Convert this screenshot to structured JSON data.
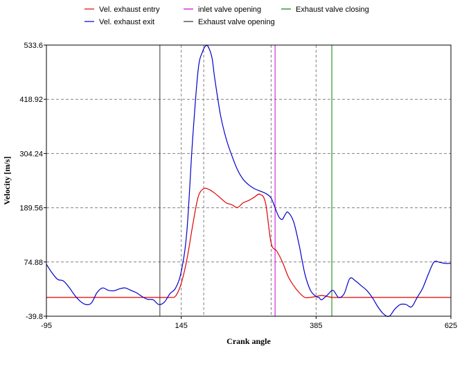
{
  "chart_data": {
    "type": "line",
    "xlabel": "Crank angle",
    "ylabel": "Velocity  [m/s]",
    "xlim": [
      -95,
      625
    ],
    "ylim": [
      -39.8,
      533.6
    ],
    "x_ticks": [
      -95,
      145,
      385,
      625
    ],
    "x_tick_labels": [
      "-95",
      "145",
      "385",
      "625"
    ],
    "x_grid": [
      185,
      305
    ],
    "y_ticks": [
      -39.8,
      74.88,
      189.56,
      304.24,
      418.92,
      533.6
    ],
    "y_tick_labels": [
      "-39.8",
      "74.88",
      "189.56",
      "304.24",
      "418.92",
      "533.6"
    ],
    "grid": true,
    "legend_position": "top",
    "series": [
      {
        "name": "Vel. exhaust entry",
        "color": "#e00000",
        "x": [
          -95,
          100,
          125,
          135,
          145,
          155,
          165,
          175,
          185,
          195,
          205,
          215,
          225,
          235,
          245,
          255,
          265,
          275,
          285,
          295,
          305,
          315,
          325,
          335,
          345,
          355,
          365,
          375,
          385,
          395,
          405,
          415,
          445,
          500,
          560,
          625
        ],
        "y": [
          0,
          0,
          0,
          3,
          30,
          80,
          150,
          212,
          230,
          228,
          220,
          210,
          200,
          196,
          190,
          200,
          205,
          212,
          218,
          200,
          115,
          98,
          75,
          45,
          25,
          10,
          0,
          0,
          2,
          4,
          2,
          0,
          0,
          0,
          0,
          0
        ]
      },
      {
        "name": "Vel. exhaust exit",
        "color": "#0000cc",
        "x": [
          -95,
          -85,
          -75,
          -65,
          -55,
          -45,
          -35,
          -25,
          -15,
          -5,
          5,
          15,
          25,
          35,
          45,
          55,
          65,
          75,
          85,
          95,
          105,
          115,
          125,
          135,
          145,
          155,
          165,
          175,
          183,
          190,
          195,
          200,
          205,
          215,
          225,
          235,
          245,
          255,
          265,
          275,
          285,
          295,
          305,
          315,
          320,
          325,
          330,
          335,
          345,
          355,
          365,
          375,
          385,
          390,
          395,
          405,
          415,
          425,
          435,
          445,
          455,
          465,
          475,
          485,
          495,
          505,
          515,
          525,
          535,
          545,
          555,
          565,
          575,
          585,
          595,
          605,
          615,
          625
        ],
        "y": [
          70,
          52,
          38,
          35,
          22,
          5,
          -8,
          -15,
          -12,
          10,
          20,
          15,
          14,
          18,
          20,
          15,
          10,
          2,
          -4,
          -5,
          -15,
          -10,
          8,
          20,
          55,
          140,
          330,
          480,
          520,
          533,
          525,
          505,
          460,
          385,
          335,
          300,
          270,
          250,
          238,
          230,
          225,
          220,
          210,
          180,
          168,
          165,
          175,
          180,
          160,
          110,
          50,
          15,
          2,
          0,
          -5,
          5,
          15,
          0,
          8,
          40,
          35,
          25,
          15,
          0,
          -20,
          -35,
          -40,
          -25,
          -15,
          -15,
          -20,
          0,
          20,
          50,
          75,
          74,
          72,
          72
        ]
      }
    ],
    "markers": [
      {
        "name": "inlet valve opening",
        "x": 312,
        "color": "#cc00cc"
      },
      {
        "name": "Exhaust valve closing",
        "x": 413,
        "color": "#008000"
      },
      {
        "name": "Exhaust valve opening",
        "x": 107,
        "color": "#333333"
      }
    ]
  }
}
